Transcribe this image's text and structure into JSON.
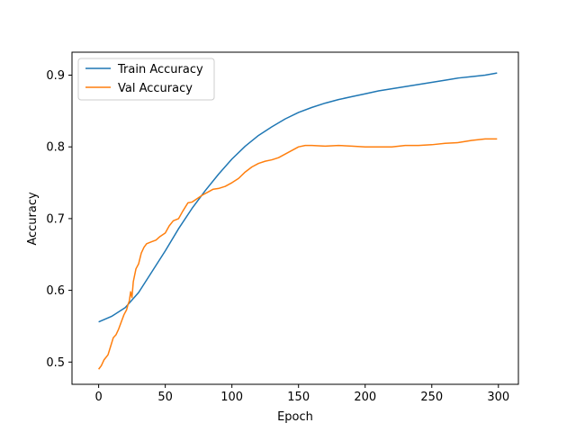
{
  "chart_data": {
    "type": "line",
    "title": "",
    "xlabel": "Epoch",
    "ylabel": "Accuracy",
    "xlim": [
      -20,
      315
    ],
    "ylim": [
      0.469,
      0.932
    ],
    "x_ticks": [
      0,
      50,
      100,
      150,
      200,
      250,
      300
    ],
    "y_ticks": [
      0.5,
      0.6,
      0.7,
      0.8,
      0.9
    ],
    "x_tick_labels": [
      "0",
      "50",
      "100",
      "150",
      "200",
      "250",
      "300"
    ],
    "y_tick_labels": [
      "0.5",
      "0.6",
      "0.7",
      "0.8",
      "0.9"
    ],
    "grid": false,
    "legend": "top-left",
    "series": [
      {
        "name": "Train Accuracy",
        "color": "#1f77b4",
        "points": [
          [
            0,
            0.556
          ],
          [
            10,
            0.564
          ],
          [
            20,
            0.576
          ],
          [
            30,
            0.597
          ],
          [
            40,
            0.626
          ],
          [
            50,
            0.655
          ],
          [
            60,
            0.686
          ],
          [
            70,
            0.714
          ],
          [
            80,
            0.739
          ],
          [
            90,
            0.762
          ],
          [
            100,
            0.783
          ],
          [
            110,
            0.801
          ],
          [
            120,
            0.816
          ],
          [
            130,
            0.828
          ],
          [
            140,
            0.839
          ],
          [
            150,
            0.848
          ],
          [
            160,
            0.855
          ],
          [
            170,
            0.861
          ],
          [
            180,
            0.866
          ],
          [
            190,
            0.87
          ],
          [
            200,
            0.874
          ],
          [
            210,
            0.878
          ],
          [
            220,
            0.881
          ],
          [
            230,
            0.884
          ],
          [
            240,
            0.887
          ],
          [
            250,
            0.89
          ],
          [
            260,
            0.893
          ],
          [
            270,
            0.896
          ],
          [
            280,
            0.898
          ],
          [
            290,
            0.9
          ],
          [
            299,
            0.903
          ]
        ]
      },
      {
        "name": "Val Accuracy",
        "color": "#ff7f0e",
        "points": [
          [
            0,
            0.49
          ],
          [
            2,
            0.495
          ],
          [
            4,
            0.503
          ],
          [
            7,
            0.51
          ],
          [
            9,
            0.522
          ],
          [
            11,
            0.534
          ],
          [
            13,
            0.538
          ],
          [
            15,
            0.546
          ],
          [
            17,
            0.556
          ],
          [
            19,
            0.566
          ],
          [
            21,
            0.573
          ],
          [
            22,
            0.58
          ],
          [
            23,
            0.585
          ],
          [
            24,
            0.598
          ],
          [
            25,
            0.59
          ],
          [
            26,
            0.612
          ],
          [
            28,
            0.63
          ],
          [
            30,
            0.637
          ],
          [
            32,
            0.652
          ],
          [
            34,
            0.66
          ],
          [
            36,
            0.665
          ],
          [
            40,
            0.668
          ],
          [
            43,
            0.67
          ],
          [
            46,
            0.675
          ],
          [
            50,
            0.68
          ],
          [
            53,
            0.69
          ],
          [
            56,
            0.697
          ],
          [
            60,
            0.7
          ],
          [
            63,
            0.71
          ],
          [
            67,
            0.722
          ],
          [
            70,
            0.723
          ],
          [
            74,
            0.728
          ],
          [
            78,
            0.733
          ],
          [
            82,
            0.737
          ],
          [
            86,
            0.741
          ],
          [
            90,
            0.742
          ],
          [
            95,
            0.745
          ],
          [
            100,
            0.75
          ],
          [
            105,
            0.756
          ],
          [
            110,
            0.765
          ],
          [
            115,
            0.772
          ],
          [
            120,
            0.777
          ],
          [
            125,
            0.78
          ],
          [
            130,
            0.782
          ],
          [
            135,
            0.785
          ],
          [
            140,
            0.79
          ],
          [
            145,
            0.795
          ],
          [
            150,
            0.8
          ],
          [
            155,
            0.802
          ],
          [
            160,
            0.802
          ],
          [
            170,
            0.801
          ],
          [
            180,
            0.802
          ],
          [
            190,
            0.801
          ],
          [
            200,
            0.8
          ],
          [
            210,
            0.8
          ],
          [
            220,
            0.8
          ],
          [
            230,
            0.802
          ],
          [
            240,
            0.802
          ],
          [
            250,
            0.803
          ],
          [
            260,
            0.805
          ],
          [
            270,
            0.806
          ],
          [
            280,
            0.809
          ],
          [
            290,
            0.811
          ],
          [
            299,
            0.811
          ]
        ]
      }
    ]
  }
}
